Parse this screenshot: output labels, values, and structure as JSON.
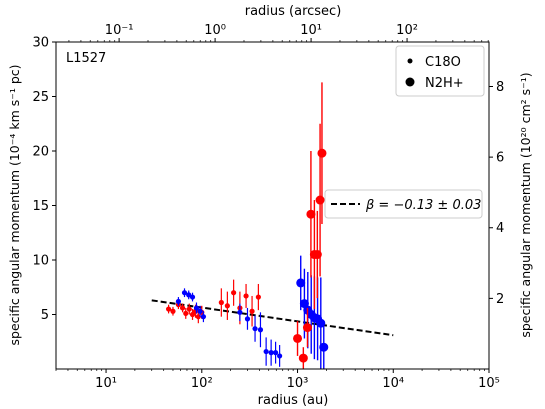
{
  "chart_data": {
    "type": "scatter",
    "panel_label": "L1527",
    "xlabel_bottom": "radius (au)",
    "xlabel_top": "radius (arcsec)",
    "ylabel_left": "specific angular momentum (10⁻⁴ km s⁻¹ pc)",
    "ylabel_right": "specific angular momentum (10²⁰ cm² s⁻¹)",
    "x_scale": "log",
    "xlim": [
      3,
      100000
    ],
    "ylim": [
      0,
      30
    ],
    "xlim_top_arcsec": [
      0.022,
      714
    ],
    "ylim_right": [
      0,
      9.26
    ],
    "x_ticks": [
      10,
      100,
      1000,
      10000,
      100000
    ],
    "x_tick_labels": [
      "10¹",
      "10²",
      "10³",
      "10⁴",
      "10⁵"
    ],
    "x_top_ticks": [
      0.1,
      1,
      10,
      100
    ],
    "x_top_tick_labels": [
      "10⁻¹",
      "10⁰",
      "10¹",
      "10²"
    ],
    "y_ticks": [
      5,
      10,
      15,
      20,
      25,
      30
    ],
    "y_right_ticks": [
      2,
      4,
      6,
      8
    ],
    "grid": false,
    "legend_position": "top-right",
    "legend": [
      {
        "label": "C18O",
        "marker": "small-dot"
      },
      {
        "label": "N2H+",
        "marker": "large-dot"
      }
    ],
    "fit": {
      "label": "β = −0.13 ± 0.03",
      "x": [
        30,
        10000
      ],
      "y": [
        6.3,
        3.1
      ],
      "style": "dashed",
      "color": "#000000"
    },
    "series": [
      {
        "color": "#ff0000",
        "marker_size": "small",
        "points": [
          {
            "x": 45,
            "y": 5.5,
            "err": 0.4
          },
          {
            "x": 50,
            "y": 5.3,
            "err": 0.4
          },
          {
            "x": 57,
            "y": 5.9,
            "err": 0.4
          },
          {
            "x": 63,
            "y": 5.6,
            "err": 0.4
          },
          {
            "x": 68,
            "y": 5.1,
            "err": 0.5
          },
          {
            "x": 74,
            "y": 5.5,
            "err": 0.5
          },
          {
            "x": 80,
            "y": 5.0,
            "err": 0.5
          },
          {
            "x": 86,
            "y": 5.3,
            "err": 0.6
          },
          {
            "x": 92,
            "y": 4.8,
            "err": 0.6
          },
          {
            "x": 100,
            "y": 5.2,
            "err": 0.6
          },
          {
            "x": 160,
            "y": 6.1,
            "err": 1.3
          },
          {
            "x": 185,
            "y": 5.8,
            "err": 1.3
          },
          {
            "x": 215,
            "y": 7.0,
            "err": 1.2
          },
          {
            "x": 250,
            "y": 5.6,
            "err": 1.5
          },
          {
            "x": 290,
            "y": 6.7,
            "err": 1.1
          },
          {
            "x": 335,
            "y": 5.3,
            "err": 1.4
          },
          {
            "x": 390,
            "y": 6.6,
            "err": 1.2
          }
        ]
      },
      {
        "color": "#0000ff",
        "marker_size": "small",
        "points": [
          {
            "x": 57,
            "y": 6.2,
            "err": 0.4
          },
          {
            "x": 66,
            "y": 7.0,
            "err": 0.4
          },
          {
            "x": 73,
            "y": 6.8,
            "err": 0.4
          },
          {
            "x": 80,
            "y": 6.6,
            "err": 0.4
          },
          {
            "x": 88,
            "y": 5.6,
            "err": 0.5
          },
          {
            "x": 96,
            "y": 5.3,
            "err": 0.5
          },
          {
            "x": 104,
            "y": 4.8,
            "err": 0.5
          },
          {
            "x": 250,
            "y": 5.2,
            "err": 0.8
          },
          {
            "x": 300,
            "y": 4.6,
            "err": 1.0
          },
          {
            "x": 360,
            "y": 3.7,
            "err": 1.2
          },
          {
            "x": 410,
            "y": 3.6,
            "err": 1.6
          },
          {
            "x": 470,
            "y": 1.6,
            "err": 1.3
          },
          {
            "x": 530,
            "y": 1.5,
            "err": 1.2
          },
          {
            "x": 590,
            "y": 1.5,
            "err": 1.0
          },
          {
            "x": 650,
            "y": 1.2,
            "err": 1.0
          }
        ]
      },
      {
        "color": "#0000ff",
        "marker_size": "large",
        "points": [
          {
            "x": 1080,
            "y": 7.9,
            "err": 2.5
          },
          {
            "x": 1180,
            "y": 6.0,
            "err": 3.2
          },
          {
            "x": 1280,
            "y": 5.4,
            "err": 3.5
          },
          {
            "x": 1390,
            "y": 5.0,
            "err": 3.6
          },
          {
            "x": 1500,
            "y": 4.7,
            "err": 3.8
          },
          {
            "x": 1620,
            "y": 4.6,
            "err": 3.8
          },
          {
            "x": 1750,
            "y": 4.2,
            "err": 4.2
          },
          {
            "x": 1880,
            "y": 2.0,
            "err": 2.0
          }
        ]
      },
      {
        "color": "#ff0000",
        "marker_size": "large",
        "points": [
          {
            "x": 1000,
            "y": 2.8,
            "err": 1.6
          },
          {
            "x": 1150,
            "y": 1.0,
            "err": 1.0
          },
          {
            "x": 1270,
            "y": 3.8,
            "err": 1.8
          },
          {
            "x": 1380,
            "y": 14.2,
            "err": 5.8
          },
          {
            "x": 1500,
            "y": 10.5,
            "err": 5.0
          },
          {
            "x": 1610,
            "y": 10.5,
            "err": 4.0
          },
          {
            "x": 1720,
            "y": 15.5,
            "err": 7.0
          },
          {
            "x": 1800,
            "y": 19.8,
            "err": 6.5
          }
        ]
      }
    ]
  }
}
